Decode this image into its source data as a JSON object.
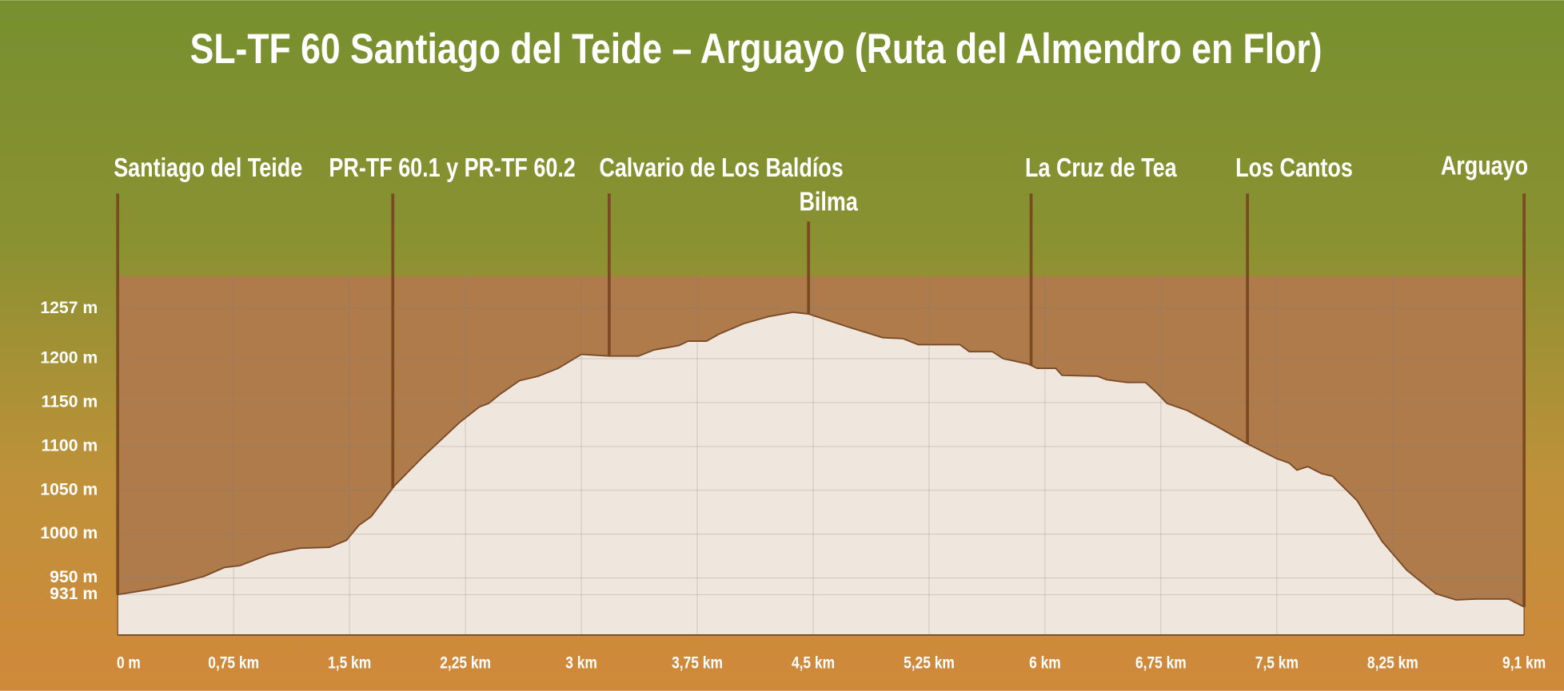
{
  "chart_data": {
    "type": "area",
    "title": "SL-TF 60 Santiago del Teide – Arguayo (Ruta del Almendro en Flor)",
    "x": [
      0,
      0.21,
      0.4,
      0.56,
      0.69,
      0.79,
      0.98,
      1.18,
      1.37,
      1.48,
      1.56,
      1.64,
      1.79,
      1.98,
      2.21,
      2.34,
      2.4,
      2.47,
      2.6,
      2.72,
      2.85,
      3.0,
      3.18,
      3.37,
      3.47,
      3.63,
      3.69,
      3.81,
      3.89,
      4.05,
      4.21,
      4.37,
      4.47,
      4.73,
      4.95,
      5.08,
      5.18,
      5.45,
      5.51,
      5.66,
      5.73,
      5.89,
      5.95,
      6.07,
      6.11,
      6.34,
      6.4,
      6.53,
      6.65,
      6.73,
      6.79,
      6.92,
      7.11,
      7.31,
      7.5,
      7.58,
      7.63,
      7.7,
      7.79,
      7.86,
      8.02,
      8.18,
      8.34,
      8.53,
      8.66,
      8.79,
      9.0,
      9.1
    ],
    "values": [
      931,
      937,
      944,
      952,
      962,
      964,
      977,
      984,
      985,
      993,
      1010,
      1020,
      1055,
      1089,
      1127,
      1145,
      1149,
      1159,
      1175,
      1180,
      1189,
      1205,
      1203,
      1203,
      1210,
      1215,
      1220,
      1220,
      1228,
      1240,
      1248,
      1253,
      1251,
      1236,
      1224,
      1223,
      1216,
      1216,
      1208,
      1208,
      1200,
      1194,
      1189,
      1189,
      1181,
      1180,
      1176,
      1173,
      1173,
      1160,
      1149,
      1141,
      1123,
      1103,
      1086,
      1081,
      1073,
      1077,
      1069,
      1066,
      1038,
      992,
      959,
      932,
      925,
      926,
      926,
      917
    ],
    "fill_color": "#efe6dd",
    "line_color": "#7b4a26",
    "plot_background": "#b07b4b",
    "xlim": [
      0,
      9.1
    ],
    "ylim": [
      885,
      1294
    ],
    "xticks": [
      {
        "value": 0,
        "label": "0 m"
      },
      {
        "value": 0.75,
        "label": "0,75 km"
      },
      {
        "value": 1.5,
        "label": "1,5 km"
      },
      {
        "value": 2.25,
        "label": "2,25 km"
      },
      {
        "value": 3,
        "label": "3 km"
      },
      {
        "value": 3.75,
        "label": "3,75 km"
      },
      {
        "value": 4.5,
        "label": "4,5 km"
      },
      {
        "value": 5.25,
        "label": "5,25 km"
      },
      {
        "value": 6,
        "label": "6 km"
      },
      {
        "value": 6.75,
        "label": "6,75 km"
      },
      {
        "value": 7.5,
        "label": "7,5 km"
      },
      {
        "value": 8.25,
        "label": "8,25 km"
      },
      {
        "value": 9.1,
        "label": "9,1 km"
      }
    ],
    "yticks": [
      {
        "value": 931,
        "label": "931 m"
      },
      {
        "value": 950,
        "label": "950 m"
      },
      {
        "value": 1000,
        "label": "1000 m"
      },
      {
        "value": 1050,
        "label": "1050 m"
      },
      {
        "value": 1100,
        "label": "1100 m"
      },
      {
        "value": 1150,
        "label": "1150 m"
      },
      {
        "value": 1200,
        "label": "1200 m"
      },
      {
        "value": 1257,
        "label": "1257 m"
      }
    ],
    "grid": true,
    "waypoints": [
      {
        "label": "Santiago del Teide",
        "x": 0
      },
      {
        "label": "PR-TF 60.1 y PR-TF 60.2",
        "x": 1.78
      },
      {
        "label": "Calvario de Los Baldíos",
        "x": 3.18
      },
      {
        "label": "Bilma",
        "x": 4.47
      },
      {
        "label": "La Cruz de Tea",
        "x": 5.91
      },
      {
        "label": "Los Cantos",
        "x": 7.31
      },
      {
        "label": "Arguayo",
        "x": 9.1
      }
    ]
  }
}
